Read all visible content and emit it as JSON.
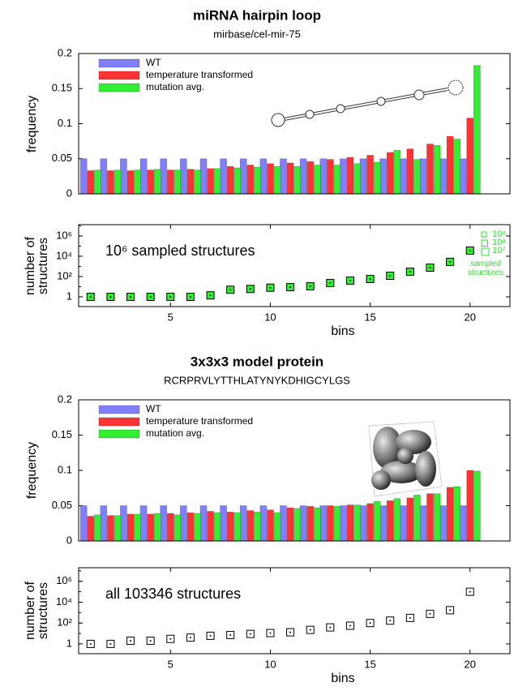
{
  "chart_data": [
    {
      "type": "bar",
      "title": "miRNA hairpin loop",
      "subtitle": "mirbase/cel-mir-75",
      "ylabel": "frequency",
      "x": [
        1,
        2,
        3,
        4,
        5,
        6,
        7,
        8,
        9,
        10,
        11,
        12,
        13,
        14,
        15,
        16,
        17,
        18,
        19,
        20
      ],
      "xlim": [
        0.4,
        22
      ],
      "ylim": [
        0,
        0.2
      ],
      "yticks": [
        0,
        0.05,
        0.1,
        0.15,
        0.2
      ],
      "legend": "upper left",
      "series": [
        {
          "name": "WT",
          "color": "#8080ff",
          "values": [
            0.05,
            0.05,
            0.05,
            0.05,
            0.05,
            0.05,
            0.05,
            0.05,
            0.05,
            0.05,
            0.05,
            0.05,
            0.05,
            0.05,
            0.05,
            0.05,
            0.05,
            0.05,
            0.05,
            0.05
          ]
        },
        {
          "name": "temperature transformed",
          "color": "#ff3333",
          "values": [
            0.033,
            0.033,
            0.033,
            0.034,
            0.034,
            0.035,
            0.036,
            0.039,
            0.041,
            0.043,
            0.044,
            0.046,
            0.049,
            0.052,
            0.055,
            0.059,
            0.064,
            0.071,
            0.082,
            0.108
          ]
        },
        {
          "name": "mutation avg.",
          "color": "#33ee33",
          "values": [
            0.034,
            0.034,
            0.034,
            0.035,
            0.034,
            0.034,
            0.036,
            0.037,
            0.038,
            0.039,
            0.039,
            0.041,
            0.041,
            0.043,
            0.045,
            0.062,
            0.049,
            0.069,
            0.078,
            0.183
          ]
        }
      ]
    },
    {
      "type": "scatter",
      "ylabel": "number of structures",
      "xlabel": "bins",
      "annotation": "10⁶ sampled structures",
      "log_y": true,
      "color": "#33ee33",
      "x": [
        1,
        2,
        3,
        4,
        5,
        6,
        7,
        8,
        9,
        10,
        11,
        12,
        13,
        14,
        15,
        16,
        17,
        18,
        19,
        20
      ],
      "xlim": [
        0.4,
        22
      ],
      "xticks": [
        5,
        10,
        15,
        20
      ],
      "values": [
        1,
        1,
        1,
        1,
        1,
        1,
        1.4,
        5,
        6,
        8,
        9,
        11,
        23,
        40,
        58,
        120,
        300,
        760,
        2800,
        36000
      ],
      "ylim": [
        0.11,
        13000000
      ],
      "yticks": [
        1,
        {
          "value": 100,
          "label": "10²"
        },
        {
          "value": 10000,
          "label": "10⁴"
        },
        {
          "value": 1000000,
          "label": "10⁶"
        }
      ],
      "size_legend": {
        "labels": [
          "10⁹",
          "10⁸",
          "10⁷"
        ],
        "title": "sampled structures",
        "color": "#33dd33"
      }
    },
    {
      "type": "bar",
      "title": "3x3x3 model protein",
      "subtitle": "RCRPRVLYTTHLATYNYKDHIGCYLGS",
      "ylabel": "frequency",
      "x": [
        1,
        2,
        3,
        4,
        5,
        6,
        7,
        8,
        9,
        10,
        11,
        12,
        13,
        14,
        15,
        16,
        17,
        18,
        19,
        20
      ],
      "xlim": [
        0.4,
        22
      ],
      "ylim": [
        0,
        0.2
      ],
      "yticks": [
        0,
        0.05,
        0.1,
        0.15,
        0.2
      ],
      "legend": "upper left",
      "series": [
        {
          "name": "WT",
          "color": "#8080ff",
          "values": [
            0.05,
            0.05,
            0.05,
            0.05,
            0.05,
            0.05,
            0.05,
            0.05,
            0.05,
            0.05,
            0.05,
            0.05,
            0.05,
            0.05,
            0.05,
            0.05,
            0.05,
            0.05,
            0.05,
            0.05
          ]
        },
        {
          "name": "temperature transformed",
          "color": "#ff3333",
          "values": [
            0.035,
            0.036,
            0.038,
            0.038,
            0.039,
            0.04,
            0.042,
            0.041,
            0.043,
            0.044,
            0.047,
            0.049,
            0.05,
            0.051,
            0.053,
            0.057,
            0.061,
            0.067,
            0.076,
            0.1
          ]
        },
        {
          "name": "mutation avg.",
          "color": "#33ee33",
          "values": [
            0.037,
            0.036,
            0.038,
            0.039,
            0.037,
            0.039,
            0.04,
            0.04,
            0.041,
            0.04,
            0.046,
            0.047,
            0.049,
            0.051,
            0.056,
            0.06,
            0.065,
            0.067,
            0.077,
            0.099
          ]
        }
      ]
    },
    {
      "type": "scatter",
      "ylabel": "number of structures",
      "xlabel": "bins",
      "annotation": "all 103346 structures",
      "log_y": true,
      "color": "#ffffff",
      "x": [
        1,
        2,
        3,
        4,
        5,
        6,
        7,
        8,
        9,
        10,
        11,
        12,
        13,
        14,
        15,
        16,
        17,
        18,
        19,
        20
      ],
      "xlim": [
        0.4,
        22
      ],
      "xticks": [
        5,
        10,
        15,
        20
      ],
      "values": [
        1,
        1,
        2,
        2,
        3,
        4,
        6,
        7,
        9,
        11,
        13,
        22,
        38,
        55,
        100,
        170,
        310,
        760,
        1700,
        99000
      ],
      "ylim": [
        0.115,
        20000000
      ],
      "yticks": [
        1,
        {
          "value": 100,
          "label": "10²"
        },
        {
          "value": 10000,
          "label": "10⁴"
        },
        {
          "value": 1000000,
          "label": "10⁶"
        }
      ]
    }
  ]
}
